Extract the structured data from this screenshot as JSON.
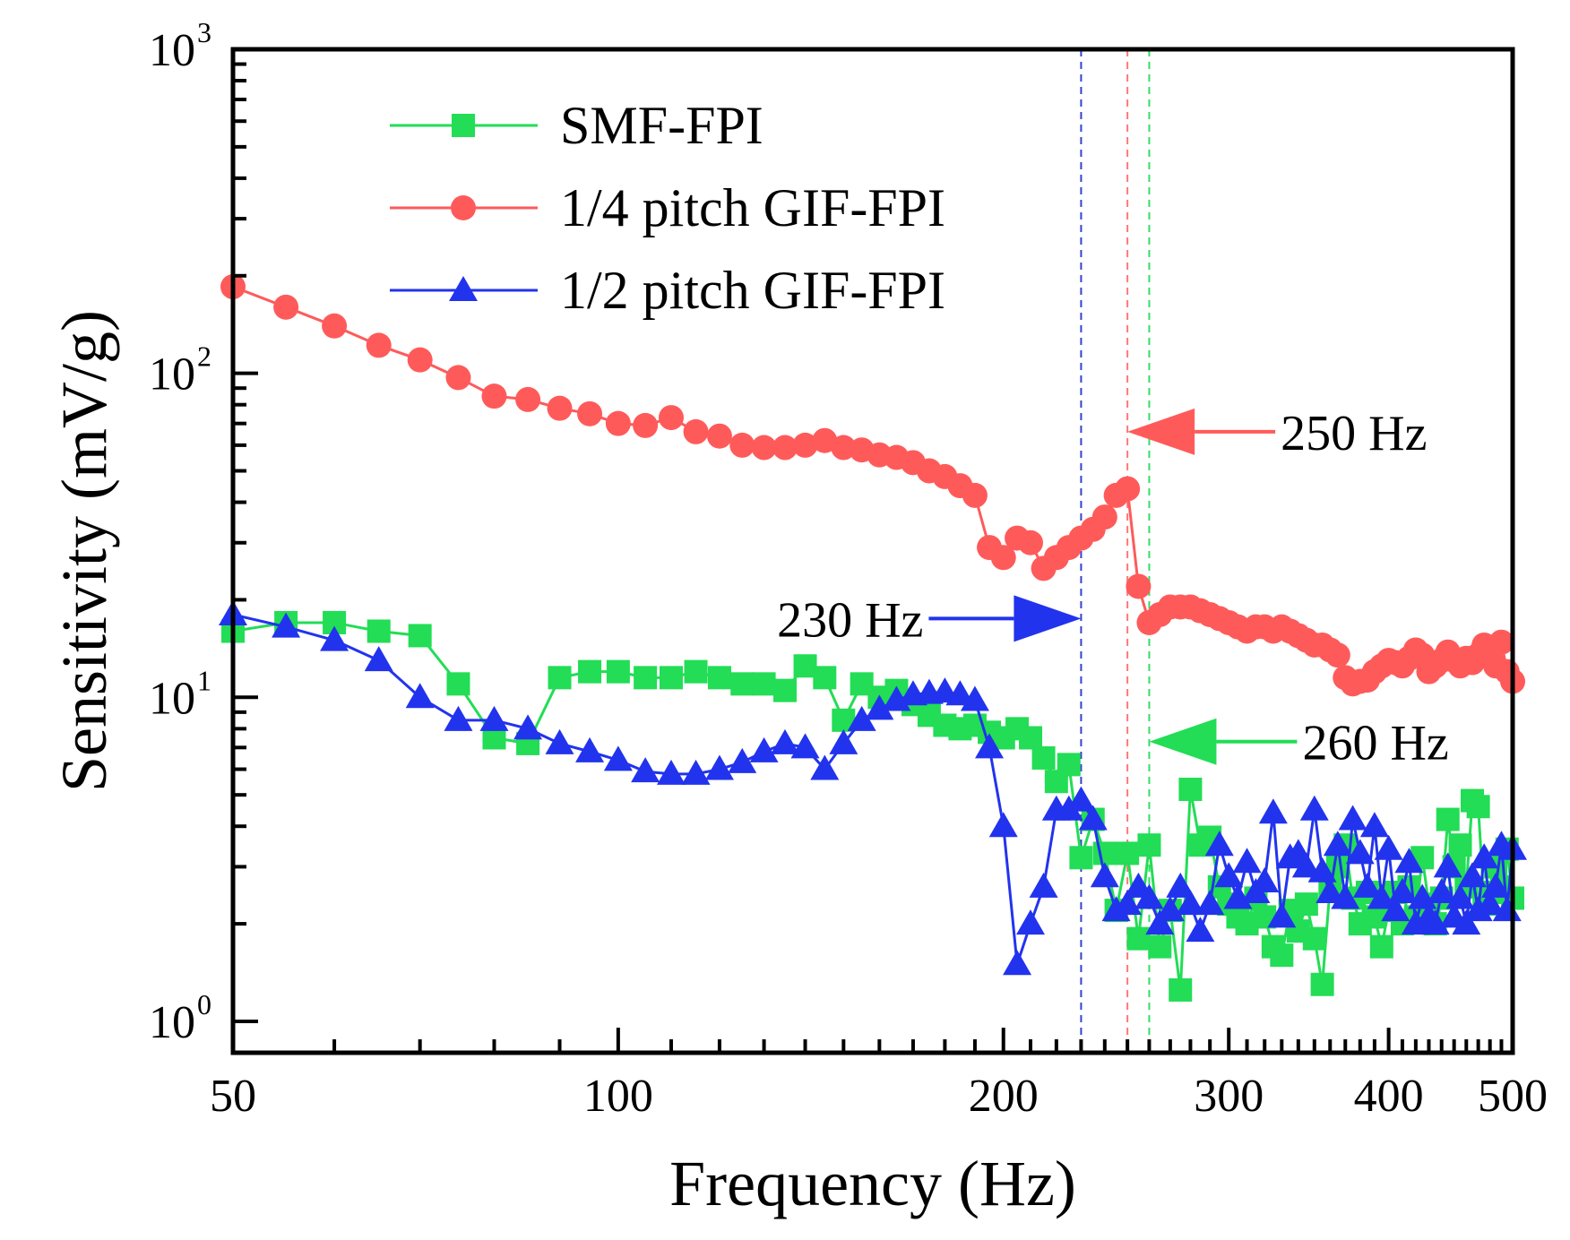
{
  "chart_data": {
    "type": "line",
    "title": "",
    "xlabel": "Frequency (Hz)",
    "ylabel": "Sensitivity (mV/g)",
    "xscale": "log",
    "yscale": "log",
    "xlim": [
      50,
      500
    ],
    "ylim": [
      0.8,
      1000
    ],
    "x_ticks": [
      {
        "value": 50,
        "label": "50"
      },
      {
        "value": 100,
        "label": "100"
      },
      {
        "value": 200,
        "label": "200"
      },
      {
        "value": 300,
        "label": "300"
      },
      {
        "value": 400,
        "label": "400"
      },
      {
        "value": 500,
        "label": "500"
      }
    ],
    "y_ticks": [
      {
        "value": 1,
        "base": "10",
        "exp": "0"
      },
      {
        "value": 10,
        "base": "10",
        "exp": "1"
      },
      {
        "value": 100,
        "base": "10",
        "exp": "2"
      },
      {
        "value": 1000,
        "base": "10",
        "exp": "3"
      }
    ],
    "legend_position": "top-left",
    "series": [
      {
        "name": "SMF-FPI",
        "color": "#22dd55",
        "marker": "square",
        "x": [
          50,
          55,
          60,
          65,
          70,
          75,
          80,
          85,
          90,
          95,
          100,
          105,
          110,
          115,
          120,
          125,
          130,
          135,
          140,
          145,
          150,
          155,
          160,
          165,
          170,
          175,
          180,
          185,
          190,
          195,
          200,
          205,
          210,
          215,
          220,
          225,
          230,
          235,
          240,
          245,
          250,
          255,
          260,
          265,
          270,
          275,
          280,
          285,
          290,
          295,
          300,
          305,
          310,
          315,
          320,
          325,
          330,
          335,
          340,
          345,
          350,
          355,
          360,
          365,
          370,
          375,
          380,
          385,
          390,
          395,
          400,
          405,
          410,
          415,
          420,
          425,
          430,
          435,
          440,
          445,
          450,
          455,
          460,
          465,
          470,
          475,
          480,
          485,
          490,
          495,
          500
        ],
        "values": [
          16,
          17,
          17,
          16,
          15.5,
          11,
          7.5,
          7.2,
          11.5,
          12,
          12,
          11.5,
          11.5,
          12,
          11.5,
          11,
          11,
          10.5,
          12.5,
          11.5,
          8.5,
          11,
          10,
          10.5,
          9.5,
          8.8,
          8.2,
          8,
          8.2,
          7.8,
          7.5,
          8,
          7.5,
          6.5,
          5.5,
          6.2,
          3.2,
          4.2,
          3.3,
          2.2,
          3.3,
          1.8,
          3.5,
          1.7,
          2.2,
          1.25,
          5.2,
          3.5,
          3.7,
          2.6,
          2.3,
          2.1,
          2.0,
          2.4,
          2.1,
          1.7,
          1.6,
          2.2,
          1.9,
          2.3,
          1.8,
          1.3,
          2.6,
          3.0,
          3.5,
          2.4,
          2.0,
          2.5,
          2.1,
          1.7,
          2.2,
          2.5,
          2.0,
          2.6,
          2.1,
          3.2,
          2.3,
          2.0,
          2.4,
          4.2,
          3.0,
          3.5,
          2.6,
          4.8,
          4.6,
          2.3,
          2.5,
          3.0,
          2.6,
          3.4,
          2.4
        ]
      },
      {
        "name": "1/4 pitch GIF-FPI",
        "color": "#ff5a5a",
        "marker": "circle",
        "x": [
          50,
          55,
          60,
          65,
          70,
          75,
          80,
          85,
          90,
          95,
          100,
          105,
          110,
          115,
          120,
          125,
          130,
          135,
          140,
          145,
          150,
          155,
          160,
          165,
          170,
          175,
          180,
          185,
          190,
          195,
          200,
          205,
          210,
          215,
          220,
          225,
          230,
          235,
          240,
          245,
          250,
          255,
          260,
          265,
          270,
          275,
          280,
          285,
          290,
          295,
          300,
          305,
          310,
          315,
          320,
          325,
          330,
          335,
          340,
          345,
          350,
          355,
          360,
          365,
          370,
          375,
          380,
          385,
          390,
          395,
          400,
          405,
          410,
          415,
          420,
          425,
          430,
          435,
          440,
          445,
          450,
          455,
          460,
          465,
          470,
          475,
          480,
          485,
          490,
          495,
          500
        ],
        "values": [
          185,
          160,
          140,
          122,
          110,
          97,
          85,
          83,
          78,
          75,
          70,
          69,
          73,
          66,
          64,
          60,
          59,
          59,
          60,
          62,
          59,
          58,
          56,
          55,
          53,
          50,
          48,
          45,
          42,
          29,
          27,
          31,
          30,
          25,
          27,
          29,
          31,
          33,
          36,
          42,
          44,
          22,
          17,
          18,
          19,
          19,
          19,
          18.5,
          18,
          17.5,
          17,
          16.5,
          16,
          16.5,
          16.5,
          16,
          16.5,
          16,
          15.5,
          15,
          14.5,
          14.5,
          14,
          13.5,
          11.5,
          11,
          11.2,
          11.3,
          12.0,
          12.5,
          13.0,
          12.8,
          12.5,
          13.2,
          14.0,
          13.5,
          12.0,
          12.5,
          13.0,
          13.8,
          13.0,
          12.5,
          13.2,
          12.8,
          13.5,
          14.5,
          13.5,
          12.5,
          14.8,
          12.0,
          11.2
        ]
      },
      {
        "name": "1/2 pitch GIF-FPI",
        "color": "#2233ee",
        "marker": "triangle",
        "x": [
          50,
          55,
          60,
          65,
          70,
          75,
          80,
          85,
          90,
          95,
          100,
          105,
          110,
          115,
          120,
          125,
          130,
          135,
          140,
          145,
          150,
          155,
          160,
          165,
          170,
          175,
          180,
          185,
          190,
          195,
          200,
          205,
          210,
          215,
          220,
          225,
          230,
          235,
          240,
          245,
          250,
          255,
          260,
          265,
          270,
          275,
          280,
          285,
          290,
          295,
          300,
          305,
          310,
          315,
          320,
          325,
          330,
          335,
          340,
          345,
          350,
          355,
          360,
          365,
          370,
          375,
          380,
          385,
          390,
          395,
          400,
          405,
          410,
          415,
          420,
          425,
          430,
          435,
          440,
          445,
          450,
          455,
          460,
          465,
          470,
          475,
          480,
          485,
          490,
          495,
          500
        ],
        "values": [
          18,
          16.5,
          15,
          13,
          10,
          8.5,
          8.5,
          8,
          7.2,
          6.8,
          6.4,
          5.9,
          5.8,
          5.8,
          6,
          6.3,
          6.8,
          7.2,
          7.0,
          6.0,
          7.2,
          8.5,
          9.2,
          9.8,
          10.2,
          10.3,
          10.4,
          10.2,
          9.8,
          7.0,
          4.0,
          1.5,
          2.0,
          2.6,
          4.5,
          4.5,
          4.8,
          4.2,
          2.8,
          2.2,
          2.3,
          2.6,
          2.4,
          2.0,
          2.2,
          2.6,
          2.3,
          1.9,
          2.3,
          3.5,
          2.8,
          2.4,
          3.1,
          2.5,
          2.7,
          4.4,
          2.1,
          3.2,
          3.3,
          3.0,
          4.5,
          2.9,
          2.5,
          3.5,
          2.4,
          4.2,
          3.3,
          2.6,
          4.0,
          2.4,
          3.4,
          2.2,
          2.5,
          3.1,
          2.0,
          2.4,
          2.1,
          2.0,
          2.5,
          3.0,
          2.1,
          2.4,
          2.0,
          2.8,
          2.2,
          3.2,
          2.3,
          2.6,
          3.5,
          2.2,
          3.4
        ]
      }
    ],
    "reference_lines": [
      {
        "x": 230,
        "color": "#3344cc"
      },
      {
        "x": 250,
        "color": "#ff7777"
      },
      {
        "x": 260,
        "color": "#33dd66"
      }
    ],
    "annotations": [
      {
        "text": "250 Hz",
        "color": "#ff5a5a",
        "arrow_tip_x": 250,
        "arrow_tip_y": 66,
        "direction": "left"
      },
      {
        "text": "230 Hz",
        "color": "#2233ee",
        "arrow_tip_x": 230,
        "arrow_tip_y": 17.5,
        "direction": "right"
      },
      {
        "text": "260 Hz",
        "color": "#22dd55",
        "arrow_tip_x": 260,
        "arrow_tip_y": 7.3,
        "direction": "left"
      }
    ]
  }
}
